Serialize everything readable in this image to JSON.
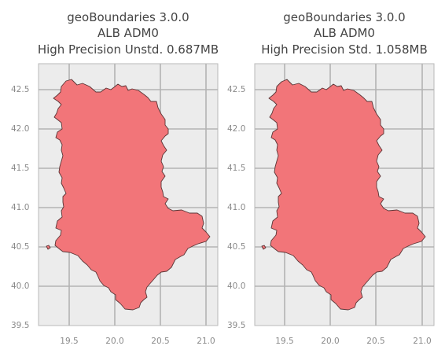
{
  "panels": [
    {
      "title_line1": "geoBoundaries 3.0.0",
      "title_line2": "ALB ADM0",
      "title_line3": "High Precision Unstd. 0.687MB",
      "x_ticks": [
        "19.5",
        "20.0",
        "20.5",
        "21.0"
      ],
      "y_ticks": [
        "39.5",
        "40.0",
        "40.5",
        "41.0",
        "41.5",
        "42.0",
        "42.5"
      ]
    },
    {
      "title_line1": "geoBoundaries 3.0.0",
      "title_line2": "ALB ADM0",
      "title_line3": "High Precision Std. 1.058MB",
      "x_ticks": [
        "19.5",
        "20.0",
        "20.5",
        "21.0"
      ],
      "y_ticks": [
        "39.5",
        "40.0",
        "40.5",
        "41.0",
        "41.5",
        "42.0",
        "42.5"
      ]
    }
  ],
  "colors": {
    "country_fill": "#f27579",
    "country_outline": "#5a3536",
    "plot_background": "#ececec",
    "grid": "#b3b3b3"
  }
}
